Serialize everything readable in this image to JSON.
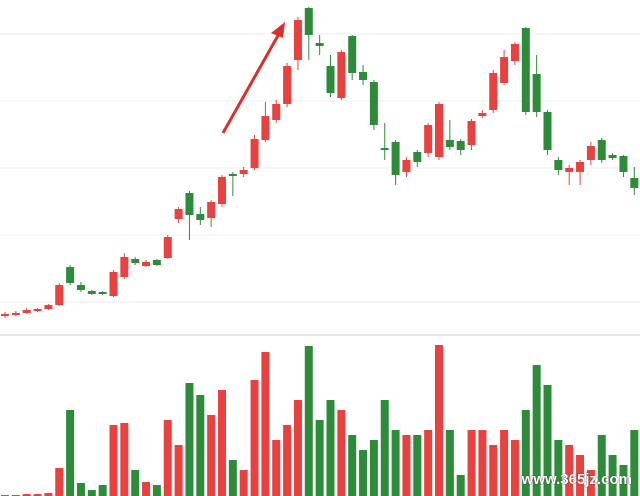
{
  "chart_data": {
    "type": "candlestick",
    "open": [
      19,
      20,
      22,
      24,
      26,
      30,
      68,
      50,
      44,
      43,
      39,
      58,
      76,
      69,
      75,
      77,
      116,
      142,
      121,
      117,
      131,
      161,
      161,
      167,
      195,
      215,
      231,
      275,
      327,
      292,
      269,
      237,
      299,
      263,
      253,
      187,
      193,
      163,
      183,
      182,
      178,
      195,
      194,
      190,
      219,
      225,
      252,
      274,
      307,
      261,
      223,
      175,
      163,
      163,
      175,
      195,
      180,
      179,
      157
    ],
    "close": [
      21,
      22,
      25,
      26,
      30,
      50,
      52,
      45,
      41,
      41,
      63,
      78,
      72,
      73,
      70,
      98,
      126,
      120,
      115,
      133,
      158,
      159,
      165,
      196,
      219,
      231,
      269,
      315,
      300,
      289,
      242,
      283,
      262,
      255,
      210,
      185,
      160,
      175,
      173,
      210,
      231,
      188,
      185,
      214,
      222,
      262,
      278,
      291,
      223,
      223,
      185,
      165,
      167,
      173,
      189,
      175,
      177,
      163,
      147
    ],
    "high": [
      23,
      24,
      27,
      27,
      31,
      52,
      70,
      53,
      45,
      44,
      65,
      82,
      78,
      75,
      76,
      100,
      128,
      144,
      128,
      135,
      160,
      163,
      168,
      200,
      233,
      235,
      272,
      318,
      328,
      300,
      280,
      285,
      300,
      270,
      255,
      212,
      195,
      178,
      185,
      212,
      233,
      215,
      196,
      216,
      225,
      265,
      285,
      293,
      308,
      280,
      225,
      178,
      170,
      175,
      193,
      197,
      182,
      180,
      168
    ],
    "low": [
      17,
      19,
      21,
      23,
      25,
      29,
      50,
      43,
      40,
      40,
      38,
      56,
      70,
      68,
      69,
      76,
      112,
      95,
      110,
      108,
      128,
      139,
      158,
      165,
      193,
      212,
      228,
      265,
      275,
      280,
      238,
      235,
      255,
      250,
      205,
      175,
      150,
      158,
      168,
      178,
      175,
      185,
      180,
      185,
      217,
      222,
      250,
      270,
      220,
      218,
      180,
      160,
      150,
      150,
      170,
      172,
      175,
      158,
      140
    ],
    "ylim": [
      0,
      335
    ],
    "up_color": "#e8413f",
    "down_color": "#2e8b3a",
    "volume": {
      "type": "bar",
      "values": [
        1,
        1,
        2,
        2,
        3,
        28,
        86,
        13,
        6,
        11,
        71,
        73,
        26,
        14,
        11,
        76,
        51,
        113,
        101,
        81,
        106,
        36,
        26,
        116,
        144,
        56,
        71,
        96,
        150,
        76,
        96,
        86,
        61,
        46,
        56,
        96,
        66,
        61,
        61,
        66,
        151,
        66,
        21,
        66,
        66,
        51,
        66,
        56,
        86,
        131,
        111,
        56,
        51,
        41,
        26,
        61,
        41,
        31,
        66
      ],
      "ylim": [
        0,
        156
      ]
    },
    "watermark": "www.365jz.com"
  }
}
